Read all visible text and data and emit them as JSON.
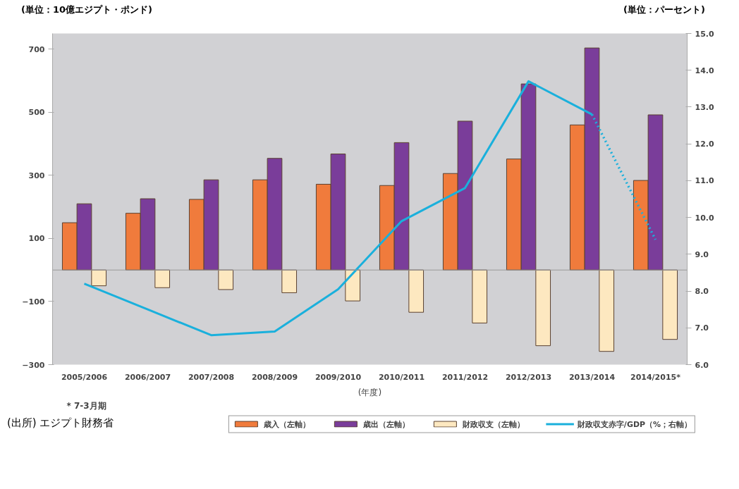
{
  "chart_data": {
    "type": "bar",
    "ylabel": "(単位：10億エジプト・ポンド)",
    "y2label": "(単位：パーセント)",
    "xlabel": "(年度)",
    "categories": [
      "2005/2006",
      "2006/2007",
      "2007/2008",
      "2008/2009",
      "2009/2010",
      "2010/2011",
      "2011/2012",
      "2012/2013",
      "2013/2014",
      "2014/2015*"
    ],
    "series": [
      {
        "name": "歳入（左軸）",
        "color": "#f07b3c",
        "values": [
          150,
          180,
          224,
          286,
          272,
          268,
          306,
          352,
          460,
          284
        ]
      },
      {
        "name": "歳出（左軸）",
        "color": "#7a3d9a",
        "values": [
          210,
          226,
          286,
          354,
          368,
          404,
          472,
          590,
          704,
          492
        ]
      },
      {
        "name": "財政収支（左軸）",
        "color": "#fde8c0",
        "values": [
          -50,
          -56,
          -62,
          -72,
          -98,
          -134,
          -168,
          -240,
          -258,
          -220
        ]
      },
      {
        "name": "財政収支赤字/GDP（%；右軸）",
        "type": "line",
        "axis": "y2",
        "color": "#1ab0dc",
        "line_style": "solid",
        "values": [
          8.2,
          7.5,
          6.8,
          6.9,
          8.05,
          9.9,
          10.8,
          13.7,
          12.8,
          null
        ]
      },
      {
        "type": "line",
        "axis": "y2",
        "color": "#1ab0dc",
        "line_style": "dotted",
        "values": [
          null,
          null,
          null,
          null,
          null,
          null,
          null,
          null,
          12.8,
          9.4
        ]
      }
    ],
    "ylim": [
      -300,
      750
    ],
    "yticks": [
      -300,
      -100,
      100,
      300,
      500,
      700
    ],
    "y2lim": [
      6,
      15
    ],
    "y2ticks": [
      {
        "value": 6,
        "label": "6.0"
      },
      {
        "value": 7,
        "label": "7.0"
      },
      {
        "value": 8,
        "label": "8.0"
      },
      {
        "value": 9,
        "label": "9.0"
      },
      {
        "value": 10,
        "label": "10.0"
      },
      {
        "value": 11,
        "label": "11.0"
      },
      {
        "value": 12,
        "label": "12.0"
      },
      {
        "value": 13,
        "label": "13.0"
      },
      {
        "value": 14,
        "label": "14.0"
      },
      {
        "value": 15,
        "label": "15.0"
      }
    ],
    "grid": false,
    "legend": "bottom",
    "annotations": [
      "* 7-3月期",
      "(出所) エジプト財務省"
    ]
  }
}
